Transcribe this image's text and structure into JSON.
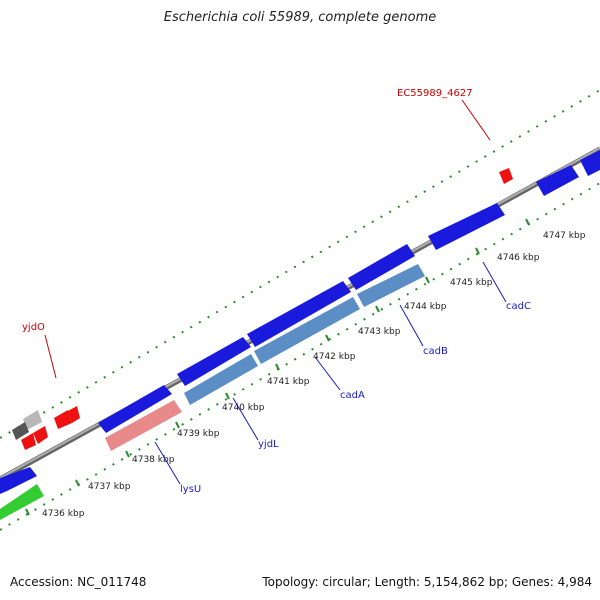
{
  "title": "Escherichia coli 55989, complete genome",
  "footer": {
    "accession": "Accession: NC_011748",
    "summary": "Topology: circular; Length: 5,154,862 bp; Genes: 4,984"
  },
  "colors": {
    "backbone": "#8a8a8a",
    "tick": "#2e8b2e",
    "gene_blue": "#1a1adc",
    "gene_steelblue": "#5b8ec4",
    "gene_salmon": "#e88a8a",
    "gene_green": "#33cc33",
    "gene_red": "#ee1111",
    "gene_gray": "#888888",
    "label_blue": "#1a1acc",
    "label_red": "#cc0000"
  },
  "kbp_labels": [
    "4736 kbp",
    "4737 kbp",
    "4738 kbp",
    "4739 kbp",
    "4740 kbp",
    "4741 kbp",
    "4742 kbp",
    "4743 kbp",
    "4744 kbp",
    "4745 kbp",
    "4746 kbp",
    "4747 kbp"
  ],
  "gene_labels": {
    "lysU": "lysU",
    "yjdL": "yjdL",
    "cadA": "cadA",
    "cadB": "cadB",
    "cadC": "cadC",
    "yjdO": "yjdO",
    "ec4627": "EC55989_4627"
  }
}
